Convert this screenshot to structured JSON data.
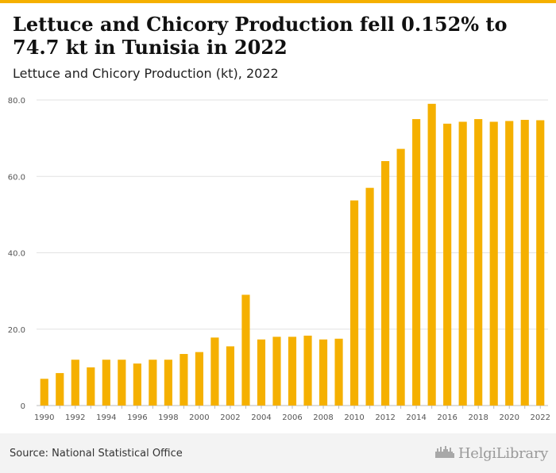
{
  "header": {
    "title": "Lettuce and Chicory Production fell 0.152% to 74.7 kt in Tunisia in 2022",
    "subtitle": "Lettuce and Chicory Production (kt), 2022"
  },
  "footer": {
    "source": "Source: National Statistical Office",
    "logo_text": "HelgiLibrary",
    "logo_icon": "city-skyline-icon"
  },
  "colors": {
    "bar": "#f5b000",
    "accent": "#f5b000",
    "grid": "#e2e2e2"
  },
  "chart_data": {
    "type": "bar",
    "categories": [
      "1990",
      "1991",
      "1992",
      "1993",
      "1994",
      "1995",
      "1996",
      "1997",
      "1998",
      "1999",
      "2000",
      "2001",
      "2002",
      "2003",
      "2004",
      "2005",
      "2006",
      "2007",
      "2008",
      "2009",
      "2010",
      "2011",
      "2012",
      "2013",
      "2014",
      "2015",
      "2016",
      "2017",
      "2018",
      "2019",
      "2020",
      "2021",
      "2022"
    ],
    "x_tick_labels": [
      "1990",
      "",
      "1992",
      "",
      "1994",
      "",
      "1996",
      "",
      "1998",
      "",
      "2000",
      "",
      "2002",
      "",
      "2004",
      "",
      "2006",
      "",
      "2008",
      "",
      "2010",
      "",
      "2012",
      "",
      "2014",
      "",
      "2016",
      "",
      "2018",
      "",
      "2020",
      "",
      "2022"
    ],
    "values": [
      7.0,
      8.5,
      12.0,
      10.0,
      12.0,
      12.0,
      11.0,
      12.0,
      12.0,
      13.5,
      14.0,
      17.8,
      15.5,
      29.0,
      17.3,
      18.0,
      18.0,
      18.3,
      17.3,
      17.5,
      53.7,
      57.0,
      64.0,
      67.2,
      75.0,
      79.0,
      73.8,
      74.3,
      75.0,
      74.3,
      74.5,
      74.8,
      74.7
    ],
    "y_ticks": [
      0,
      20,
      40,
      60,
      80
    ],
    "y_tick_labels": [
      "0",
      "20.0",
      "40.0",
      "60.0",
      "80.0"
    ],
    "ylim": [
      0,
      80
    ],
    "grid": true,
    "legend": "none",
    "xlabel": "",
    "ylabel": ""
  }
}
